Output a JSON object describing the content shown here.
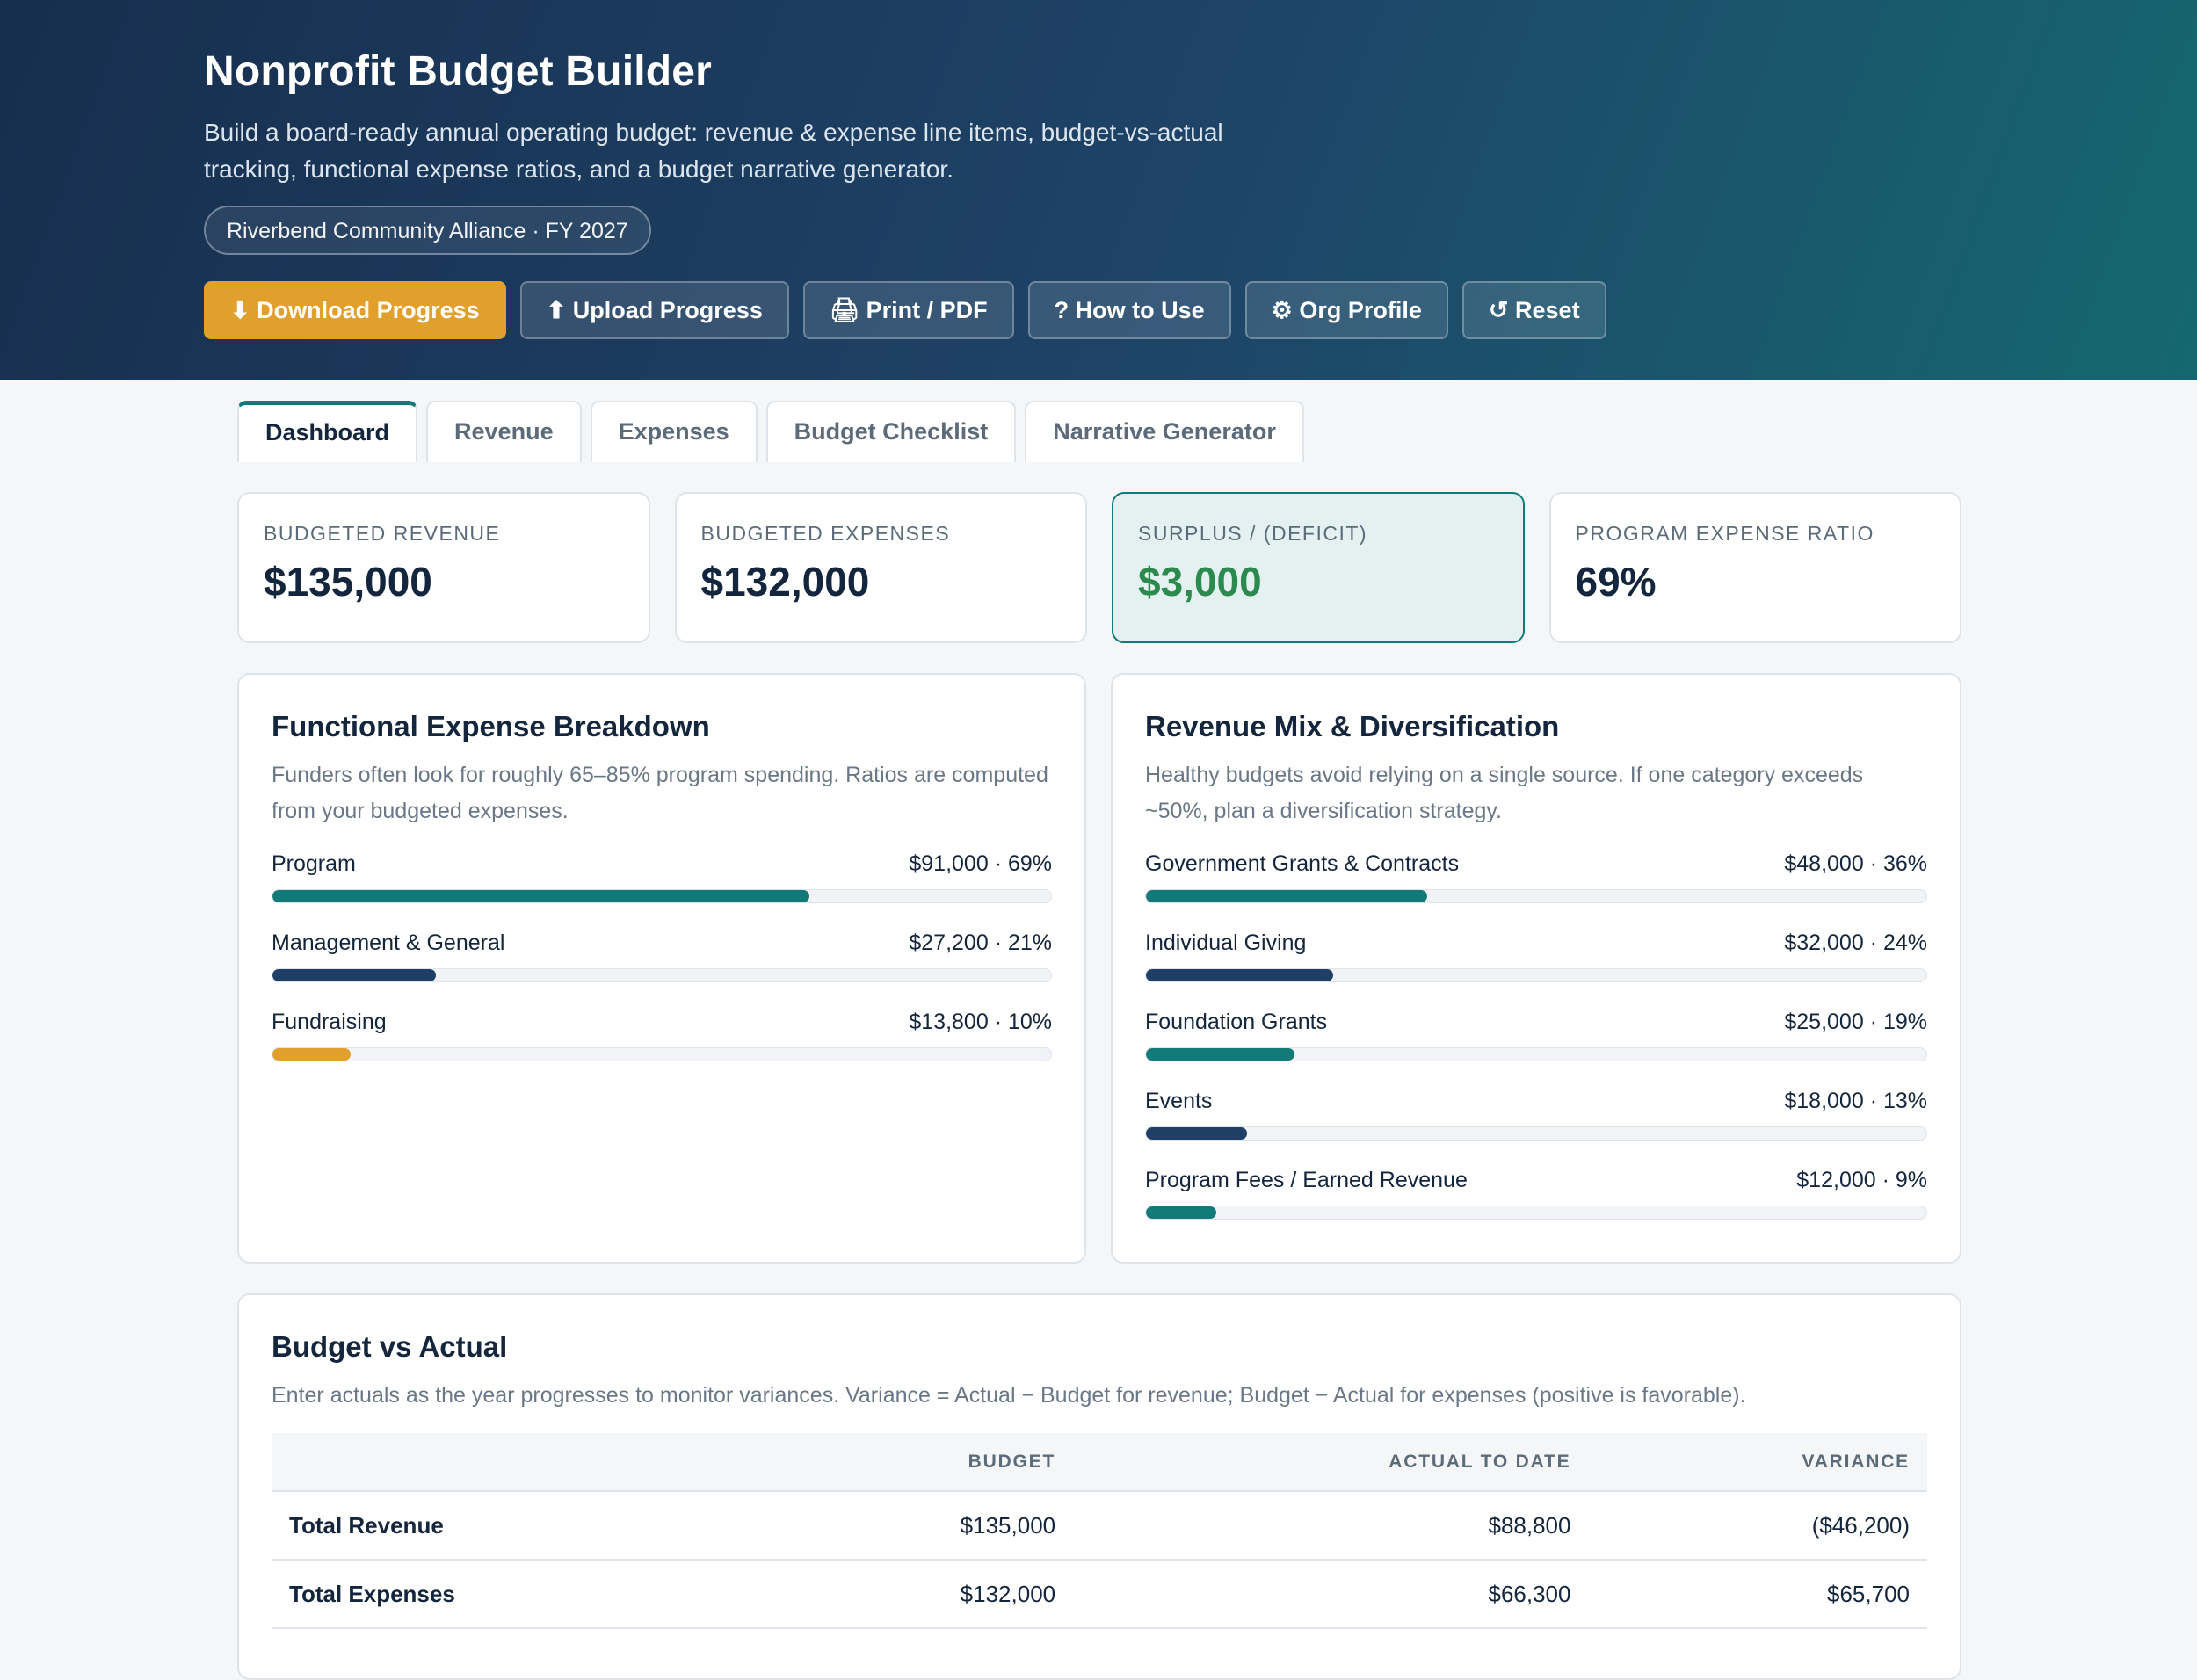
{
  "header": {
    "title": "Nonprofit Budget Builder",
    "subtitle": "Build a board-ready annual operating budget: revenue & expense line items, budget-vs-actual tracking, functional expense ratios, and a budget narrative generator.",
    "org_pill": "Riverbend Community Alliance · FY 2027"
  },
  "toolbar": {
    "download": "⬇ Download Progress",
    "upload": "⬆ Upload Progress",
    "print": "🖨 Print / PDF",
    "howto": "? How to Use",
    "org_profile": "⚙ Org Profile",
    "reset": "↺ Reset"
  },
  "tabs": [
    "Dashboard",
    "Revenue",
    "Expenses",
    "Budget Checklist",
    "Narrative Generator"
  ],
  "active_tab": "Dashboard",
  "kpis": [
    {
      "label": "Budgeted Revenue",
      "value": "$135,000"
    },
    {
      "label": "Budgeted Expenses",
      "value": "$132,000"
    },
    {
      "label": "Surplus / (Deficit)",
      "value": "$3,000"
    },
    {
      "label": "Program Expense Ratio",
      "value": "69%"
    }
  ],
  "functional": {
    "title": "Functional Expense Breakdown",
    "desc": "Funders often look for roughly 65–85% program spending. Ratios are computed from your budgeted expenses.",
    "items": [
      {
        "label": "Program",
        "value": "$91,000 · 69%",
        "fraction": 0.69,
        "color": "#137a7a"
      },
      {
        "label": "Management & General",
        "value": "$27,200 · 21%",
        "fraction": 0.21,
        "color": "#1f3f66"
      },
      {
        "label": "Fundraising",
        "value": "$13,800 · 10%",
        "fraction": 0.1,
        "color": "#e19f2c"
      }
    ]
  },
  "revenue_mix": {
    "title": "Revenue Mix & Diversification",
    "desc": "Healthy budgets avoid relying on a single source. If one category exceeds ~50%, plan a diversification strategy.",
    "items": [
      {
        "label": "Government Grants & Contracts",
        "value": "$48,000 · 36%",
        "fraction": 0.36,
        "color": "#137a7a"
      },
      {
        "label": "Individual Giving",
        "value": "$32,000 · 24%",
        "fraction": 0.24,
        "color": "#1f3f66"
      },
      {
        "label": "Foundation Grants",
        "value": "$25,000 · 19%",
        "fraction": 0.19,
        "color": "#137a7a"
      },
      {
        "label": "Events",
        "value": "$18,000 · 13%",
        "fraction": 0.13,
        "color": "#1f3f66"
      },
      {
        "label": "Program Fees / Earned Revenue",
        "value": "$12,000 · 9%",
        "fraction": 0.09,
        "color": "#137a7a"
      }
    ]
  },
  "bva": {
    "title": "Budget vs Actual",
    "desc": "Enter actuals as the year progresses to monitor variances. Variance = Actual − Budget for revenue; Budget − Actual for expenses (positive is favorable).",
    "columns": [
      "",
      "Budget",
      "Actual to Date",
      "Variance"
    ],
    "rows": [
      {
        "label": "Total Revenue",
        "budget": "$135,000",
        "actual": "$88,800",
        "variance": "($46,200)",
        "status": "neg"
      },
      {
        "label": "Total Expenses",
        "budget": "$132,000",
        "actual": "$66,300",
        "variance": "$65,700",
        "status": "pos"
      }
    ]
  },
  "colors": {
    "header_start": "#172e4e",
    "header_end": "#15686f",
    "accent_orange": "#e19f2c",
    "teal": "#137a7a",
    "navy": "#1f3f66",
    "positive": "#2d8a4e",
    "negative": "#c0392b"
  }
}
